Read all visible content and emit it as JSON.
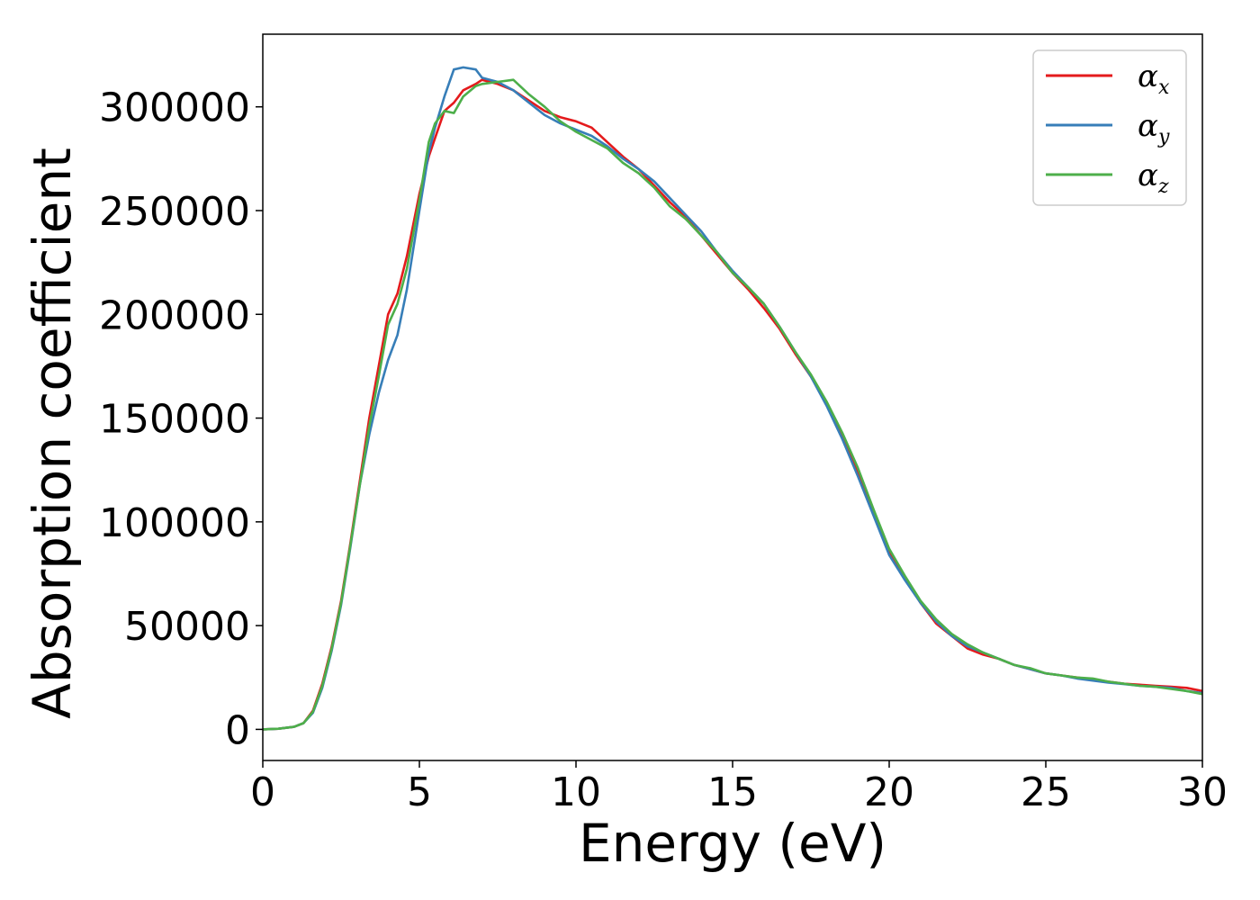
{
  "chart_data": {
    "type": "line",
    "title": "",
    "xlabel": "Energy (eV)",
    "ylabel": "Absorption coefficient",
    "xlim": [
      0,
      30
    ],
    "ylim": [
      -15000,
      335000
    ],
    "xticks": [
      0,
      5,
      10,
      15,
      20,
      25,
      30
    ],
    "xtick_labels": [
      "0",
      "5",
      "10",
      "15",
      "20",
      "25",
      "30"
    ],
    "yticks": [
      0,
      50000,
      100000,
      150000,
      200000,
      250000,
      300000
    ],
    "ytick_labels": [
      "0",
      "50000",
      "100000",
      "150000",
      "200000",
      "250000",
      "300000"
    ],
    "grid": false,
    "legend_position": "top-right",
    "series": [
      {
        "name": "α",
        "subscript": "x",
        "color": "#e41a1c",
        "x": [
          0,
          0.5,
          1.0,
          1.3,
          1.6,
          1.9,
          2.2,
          2.5,
          2.8,
          3.1,
          3.4,
          3.7,
          4.0,
          4.3,
          4.6,
          5.0,
          5.3,
          5.5,
          5.8,
          6.1,
          6.4,
          6.8,
          7.0,
          7.5,
          8.0,
          8.5,
          9.0,
          9.5,
          10.0,
          10.5,
          11.0,
          11.5,
          12.0,
          12.5,
          13.0,
          13.5,
          14.0,
          14.5,
          15.0,
          15.5,
          16.0,
          16.5,
          17.0,
          17.5,
          18.0,
          18.5,
          19.0,
          19.5,
          20.0,
          20.5,
          21.0,
          21.5,
          22.0,
          22.5,
          23.0,
          23.5,
          24.0,
          24.5,
          25.0,
          25.5,
          26.0,
          26.5,
          27.0,
          27.5,
          28.0,
          28.5,
          29.0,
          29.5,
          30.0
        ],
        "y": [
          0,
          300,
          1200,
          3000,
          9000,
          22000,
          40000,
          62000,
          90000,
          120000,
          150000,
          175000,
          200000,
          210000,
          228000,
          258000,
          276000,
          285000,
          298000,
          302000,
          308000,
          311000,
          313000,
          311000,
          308000,
          303000,
          298000,
          295000,
          293000,
          290000,
          283000,
          276000,
          270000,
          262000,
          254000,
          247000,
          238000,
          229000,
          220000,
          212000,
          203000,
          193000,
          181000,
          170000,
          157000,
          141000,
          124000,
          105000,
          86000,
          73000,
          61000,
          51000,
          45000,
          39000,
          36000,
          34000,
          31000,
          29000,
          27000,
          26000,
          25000,
          24000,
          23000,
          22000,
          21500,
          21000,
          20500,
          20000,
          18500
        ]
      },
      {
        "name": "α",
        "subscript": "y",
        "color": "#377eb8",
        "x": [
          0,
          0.5,
          1.0,
          1.3,
          1.6,
          1.9,
          2.2,
          2.5,
          2.8,
          3.1,
          3.4,
          3.7,
          4.0,
          4.3,
          4.6,
          5.0,
          5.3,
          5.5,
          5.8,
          6.1,
          6.4,
          6.8,
          7.0,
          7.5,
          8.0,
          8.5,
          9.0,
          9.5,
          10.0,
          10.5,
          11.0,
          11.5,
          12.0,
          12.5,
          13.0,
          13.5,
          14.0,
          14.5,
          15.0,
          15.5,
          16.0,
          16.5,
          17.0,
          17.5,
          18.0,
          18.5,
          19.0,
          19.5,
          20.0,
          20.5,
          21.0,
          21.5,
          22.0,
          22.5,
          23.0,
          23.5,
          24.0,
          24.5,
          25.0,
          25.5,
          26.0,
          26.5,
          27.0,
          27.5,
          28.0,
          28.5,
          29.0,
          29.5,
          30.0
        ],
        "y": [
          0,
          300,
          1200,
          3000,
          8000,
          20000,
          38000,
          60000,
          88000,
          118000,
          142000,
          162000,
          178000,
          190000,
          212000,
          250000,
          278000,
          290000,
          305000,
          318000,
          319000,
          318000,
          314000,
          312000,
          308000,
          302000,
          296000,
          292000,
          289000,
          286000,
          281000,
          275000,
          270000,
          264000,
          256000,
          248000,
          240000,
          230000,
          221000,
          213000,
          205000,
          194000,
          182000,
          170000,
          156000,
          140000,
          122000,
          103000,
          84000,
          72000,
          61000,
          52000,
          45000,
          40000,
          37000,
          34000,
          31000,
          29000,
          27000,
          26000,
          24500,
          23500,
          22500,
          21800,
          21000,
          20500,
          20000,
          18500,
          17500
        ]
      },
      {
        "name": "α",
        "subscript": "z",
        "color": "#4daf4a",
        "x": [
          0,
          0.5,
          1.0,
          1.3,
          1.6,
          1.9,
          2.2,
          2.5,
          2.8,
          3.1,
          3.4,
          3.7,
          4.0,
          4.3,
          4.6,
          5.0,
          5.3,
          5.5,
          5.8,
          6.1,
          6.4,
          6.8,
          7.0,
          7.5,
          8.0,
          8.5,
          9.0,
          9.5,
          10.0,
          10.5,
          11.0,
          11.5,
          12.0,
          12.5,
          13.0,
          13.5,
          14.0,
          14.5,
          15.0,
          15.5,
          16.0,
          16.5,
          17.0,
          17.5,
          18.0,
          18.5,
          19.0,
          19.5,
          20.0,
          20.5,
          21.0,
          21.5,
          22.0,
          22.5,
          23.0,
          23.5,
          24.0,
          24.5,
          25.0,
          25.5,
          26.0,
          26.5,
          27.0,
          27.5,
          28.0,
          28.5,
          29.0,
          29.5,
          30.0
        ],
        "y": [
          0,
          300,
          1200,
          3000,
          8500,
          21000,
          39000,
          61000,
          89000,
          118000,
          146000,
          170000,
          195000,
          205000,
          222000,
          255000,
          283000,
          292000,
          298000,
          297000,
          305000,
          310000,
          311000,
          312000,
          313000,
          306000,
          300000,
          293000,
          288000,
          284000,
          280000,
          273000,
          268000,
          261000,
          252000,
          246000,
          238000,
          230000,
          220000,
          213000,
          205000,
          194000,
          182000,
          171000,
          158000,
          143000,
          126000,
          106000,
          87000,
          74000,
          62000,
          53000,
          46000,
          41000,
          37000,
          34000,
          31000,
          29500,
          27000,
          26000,
          25000,
          24500,
          23000,
          22000,
          21000,
          20500,
          19500,
          18500,
          17000
        ]
      }
    ]
  }
}
